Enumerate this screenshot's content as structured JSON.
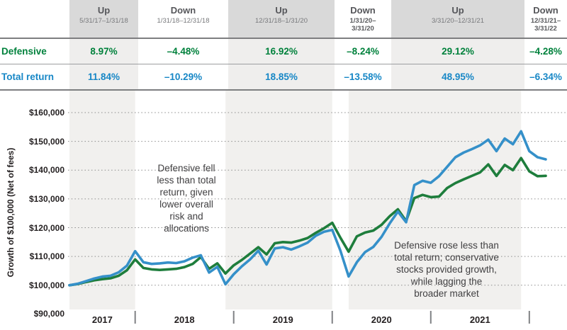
{
  "table": {
    "columns": [
      {
        "direction": "Up",
        "period": "5/31/17–1/31/18",
        "shaded": true
      },
      {
        "direction": "Down",
        "period": "1/31/18–12/31/18",
        "shaded": false
      },
      {
        "direction": "Up",
        "period": "12/31/18–1/31/20",
        "shaded": true
      },
      {
        "direction": "Down",
        "period": "1/31/20–\n3/31/20",
        "shaded": false
      },
      {
        "direction": "Up",
        "period": "3/31/20–12/31/21",
        "shaded": true
      },
      {
        "direction": "Down",
        "period": "12/31/21–\n3/31/22",
        "shaded": false
      }
    ],
    "rows": [
      {
        "label": "Defensive",
        "color": "#00813c",
        "values": [
          "8.97%",
          "–4.48%",
          "16.92%",
          "–8.24%",
          "29.12%",
          "–4.28%"
        ]
      },
      {
        "label": "Total return",
        "color": "#1787c6",
        "values": [
          "11.84%",
          "–10.29%",
          "18.85%",
          "–13.58%",
          "48.95%",
          "–6.34%"
        ]
      }
    ]
  },
  "annotations": {
    "left": "Defensive fell\nless than total\nreturn, given\nlower overall\nrisk and\nallocations",
    "right": "Defensive rose less than\ntotal return; conservative\nstocks provided growth,\nwhile lagging the\nbroader market"
  },
  "chart_data": {
    "type": "line",
    "title": "",
    "ylabel": "Growth of $100,000 (Net of fees)",
    "xlabel": "",
    "ylim": [
      90000,
      160000
    ],
    "grid": "horizontal-dotted",
    "legend_position": "none (series identified by table row colors)",
    "x_unit": "months since 5/31/2017 (monthly points, 5/31/17 – 3/31/22)",
    "y_tick_labels": [
      "$160,000",
      "$150,000",
      "$140,000",
      "$130,000",
      "$120,000",
      "$110,000",
      "$100,000",
      "$90,000"
    ],
    "y_tick_values": [
      160000,
      150000,
      140000,
      130000,
      120000,
      110000,
      100000,
      90000
    ],
    "x_tick_months": [
      8,
      20,
      32,
      44,
      56
    ],
    "x_year_labels": [
      {
        "label": "2017",
        "center_month": 4
      },
      {
        "label": "2018",
        "center_month": 14
      },
      {
        "label": "2019",
        "center_month": 26
      },
      {
        "label": "2020",
        "center_month": 38
      },
      {
        "label": "2021",
        "center_month": 50
      }
    ],
    "shaded_up_period_bands_months": [
      [
        0,
        8
      ],
      [
        19,
        32
      ],
      [
        34,
        55
      ]
    ],
    "series": [
      {
        "name": "Defensive",
        "color": "#1e7d3c",
        "values": [
          100.0,
          100.4,
          101.1,
          101.7,
          102.1,
          102.4,
          103.3,
          105.2,
          108.97,
          106.0,
          105.5,
          105.3,
          105.5,
          105.7,
          106.3,
          107.4,
          109.8,
          105.7,
          107.6,
          104.09,
          106.9,
          108.8,
          111.0,
          113.2,
          110.7,
          114.6,
          115.0,
          114.8,
          115.5,
          116.4,
          118.2,
          119.8,
          121.7,
          116.5,
          111.67,
          117.0,
          118.3,
          119.0,
          121.0,
          124.0,
          126.4,
          122.3,
          130.3,
          131.4,
          130.6,
          130.8,
          133.8,
          135.5,
          136.8,
          138.0,
          139.2,
          142.0,
          138.0,
          141.8,
          140.0,
          144.19,
          139.6,
          137.9,
          138.02
        ]
      },
      {
        "name": "Total return",
        "color": "#3590c9",
        "values": [
          100.0,
          100.5,
          101.4,
          102.3,
          103.0,
          103.3,
          104.5,
          106.8,
          111.84,
          108.0,
          107.4,
          107.6,
          107.9,
          107.7,
          108.3,
          109.6,
          110.4,
          104.4,
          106.4,
          100.33,
          103.8,
          106.6,
          109.0,
          112.0,
          107.2,
          112.8,
          113.2,
          112.4,
          113.5,
          114.8,
          117.2,
          118.6,
          119.24,
          112.0,
          103.05,
          108.0,
          111.5,
          113.3,
          116.8,
          121.5,
          125.6,
          121.9,
          134.8,
          136.3,
          135.6,
          137.9,
          141.2,
          144.5,
          146.1,
          147.3,
          148.6,
          150.6,
          146.6,
          151.0,
          149.0,
          153.49,
          146.6,
          144.5,
          143.76
        ]
      }
    ],
    "values_unit": "thousands of dollars (growth of $100,000)",
    "colors": {
      "up_band_header": "#d9d9d9",
      "up_band_table_body": "#efeeed",
      "up_band_chart": "#f1f0ee",
      "gridline": "#8c8c8c",
      "tick": "#808285",
      "defensive_green": "#1e7d3c",
      "total_return_blue": "#3590c9"
    }
  }
}
